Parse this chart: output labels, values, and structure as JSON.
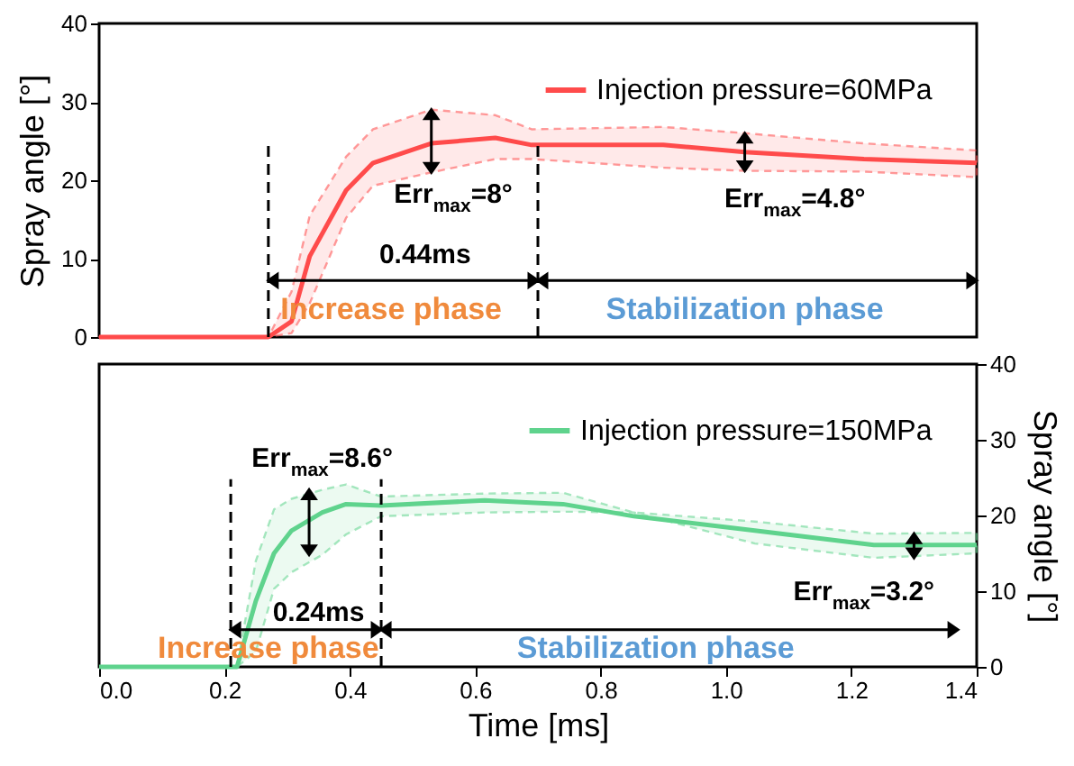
{
  "chart_data": [
    {
      "type": "line",
      "ylabel": "Spray angle [°]",
      "xlim": [
        0,
        1.4
      ],
      "ylim": [
        0,
        40
      ],
      "yticks": [
        0,
        10,
        20,
        30,
        40
      ],
      "tick_labels": "y",
      "legend": "top right",
      "grid": false,
      "x": [
        0,
        0.27,
        0.307,
        0.336,
        0.394,
        0.437,
        0.53,
        0.632,
        0.69,
        0.9,
        1.03,
        1.22,
        1.4
      ],
      "series": [
        {
          "name": "Injection pressure=60MPa",
          "color": "#ff4b4b",
          "line_style": "solid",
          "values": [
            0,
            0,
            2,
            10.3,
            18.7,
            22.2,
            24.7,
            25.4,
            24.5,
            24.5,
            23.6,
            22.7,
            22.2
          ],
          "lower": [
            0,
            0,
            0.5,
            4.3,
            15.2,
            19.3,
            21,
            22.7,
            22.7,
            21.6,
            21.2,
            21.1,
            20.4
          ],
          "upper": [
            0,
            0,
            5.8,
            15.5,
            23,
            26.5,
            29,
            28.3,
            26.5,
            26.8,
            26,
            24.7,
            23.8
          ]
        }
      ],
      "ref_lines": [
        {
          "axis": "x",
          "value": 0.27,
          "line_style": "dashed",
          "color": "#000000"
        },
        {
          "axis": "x",
          "value": 0.7,
          "line_style": "dashed",
          "color": "#000000"
        }
      ],
      "annotations": [
        "Err$_{max}$=8°",
        "Err$_{max}$=4.8°",
        "0.44ms",
        "Increase phase",
        "Stabilization phase"
      ]
    },
    {
      "type": "line",
      "xlabel": "Time [ms]",
      "y2label": "Spray angle [°]",
      "xlim": [
        0,
        1.4
      ],
      "xticks": [
        {
          "value": 0,
          "label": "0.0"
        },
        0.2,
        0.4,
        0.6,
        0.8,
        {
          "value": 1,
          "label": "1.0"
        },
        1.2,
        1.4
      ],
      "y2lim": [
        0,
        40
      ],
      "y2ticks": [
        0,
        10,
        20,
        30,
        40
      ],
      "legend": "top right",
      "grid": false,
      "x": [
        0,
        0.22,
        0.25,
        0.279,
        0.307,
        0.356,
        0.394,
        0.45,
        0.615,
        0.74,
        0.853,
        1.046,
        1.236,
        1.4
      ],
      "series": [
        {
          "name": "Injection pressure=150MPa",
          "color": "#5fd38d",
          "axis": "y2",
          "line_style": "solid",
          "values": [
            0,
            0,
            8.7,
            15,
            18,
            20.4,
            21.5,
            21.3,
            22,
            21.5,
            19.9,
            18,
            16.1,
            16.1
          ],
          "lower": [
            0,
            0,
            2,
            10.3,
            12.5,
            14.8,
            17.5,
            19.9,
            20.4,
            20.5,
            20.4,
            16.3,
            14.4,
            15
          ],
          "upper": [
            0,
            0,
            14,
            20.8,
            22.2,
            23.4,
            24.1,
            22.5,
            22.9,
            23,
            20.4,
            19.2,
            17.6,
            17.7
          ]
        }
      ],
      "ref_lines": [
        {
          "axis": "x",
          "value": 0.21,
          "line_style": "dashed",
          "color": "#000000"
        },
        {
          "axis": "x",
          "value": 0.45,
          "line_style": "dashed",
          "color": "#000000"
        }
      ],
      "annotations": [
        "Err$_{max}$=8.6°",
        "Err$_{max}$=3.2°",
        "0.24ms",
        "Increase phase",
        "Stabilization phase"
      ]
    }
  ]
}
